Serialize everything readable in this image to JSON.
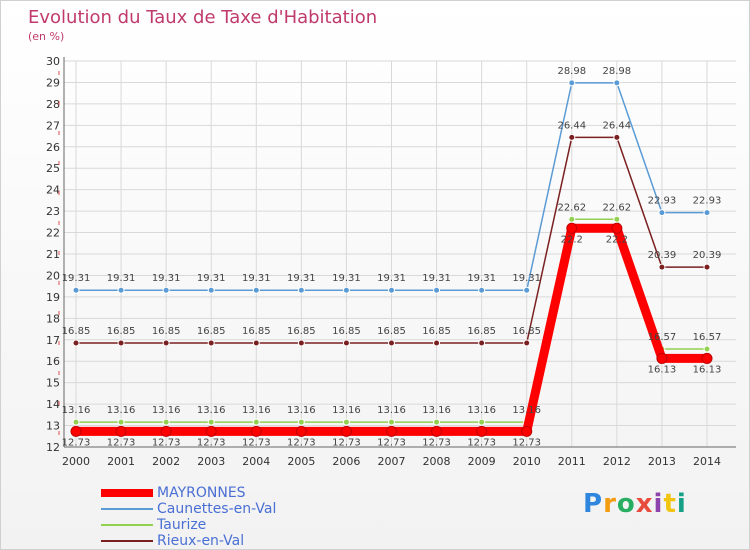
{
  "title": "Evolution du Taux de Taxe d'Habitation",
  "subtitle": "(en %)",
  "chart_data": {
    "type": "line",
    "x": [
      "2000",
      "2001",
      "2002",
      "2003",
      "2004",
      "2005",
      "2006",
      "2007",
      "2008",
      "2009",
      "2010",
      "2011",
      "2012",
      "2013",
      "2014"
    ],
    "y_ticks": [
      "12",
      "13",
      "14",
      "15",
      "16",
      "17",
      "18",
      "19",
      "20",
      "21",
      "22",
      "23",
      "24",
      "25",
      "26",
      "27",
      "28",
      "29",
      "30"
    ],
    "ylim": [
      12,
      30
    ],
    "grid": true,
    "legend_position": "bottom-left",
    "series": [
      {
        "name": "MAYRONNES",
        "color": "#ff0000",
        "values": [
          12.73,
          12.73,
          12.73,
          12.73,
          12.73,
          12.73,
          12.73,
          12.73,
          12.73,
          12.73,
          12.73,
          22.2,
          22.2,
          16.13,
          16.13
        ],
        "labels": [
          "12.73",
          "12.73",
          "12.73",
          "12.73",
          "12.73",
          "12.73",
          "12.73",
          "12.73",
          "12.73",
          "12.73",
          "12.73",
          "22.2",
          "22.2",
          "16.13",
          "16.13"
        ]
      },
      {
        "name": "Caunettes-en-Val",
        "color": "#5b9bd5",
        "values": [
          19.31,
          19.31,
          19.31,
          19.31,
          19.31,
          19.31,
          19.31,
          19.31,
          19.31,
          19.31,
          19.31,
          28.98,
          28.98,
          22.93,
          22.93
        ],
        "labels": [
          "19.31",
          "19.31",
          "19.31",
          "19.31",
          "19.31",
          "19.31",
          "19.31",
          "19.31",
          "19.31",
          "19.31",
          "19.31",
          "28.98",
          "28.98",
          "22.93",
          "22.93"
        ]
      },
      {
        "name": "Taurize",
        "color": "#92d050",
        "values": [
          13.16,
          13.16,
          13.16,
          13.16,
          13.16,
          13.16,
          13.16,
          13.16,
          13.16,
          13.16,
          13.16,
          22.62,
          22.62,
          16.57,
          16.57
        ],
        "labels": [
          "13.16",
          "13.16",
          "13.16",
          "13.16",
          "13.16",
          "13.16",
          "13.16",
          "13.16",
          "13.16",
          "13.16",
          "13.16",
          "22.62",
          "22.62",
          "16.57",
          "16.57"
        ]
      },
      {
        "name": "Rieux-en-Val",
        "color": "#7b2020",
        "values": [
          16.85,
          16.85,
          16.85,
          16.85,
          16.85,
          16.85,
          16.85,
          16.85,
          16.85,
          16.85,
          16.85,
          26.44,
          26.44,
          20.39,
          20.39
        ],
        "labels": [
          "16.85",
          "16.85",
          "16.85",
          "16.85",
          "16.85",
          "16.85",
          "16.85",
          "16.85",
          "16.85",
          "16.85",
          "16.85",
          "26.44",
          "26.44",
          "20.39",
          "20.39"
        ]
      }
    ]
  },
  "logo": {
    "letters": [
      "P",
      "r",
      "o",
      "x",
      "i",
      "t",
      "i"
    ],
    "colors": [
      "#2e86de",
      "#f39c12",
      "#27ae60",
      "#e74c3c",
      "#8e44ad",
      "#f1c40f",
      "#16a085"
    ]
  }
}
